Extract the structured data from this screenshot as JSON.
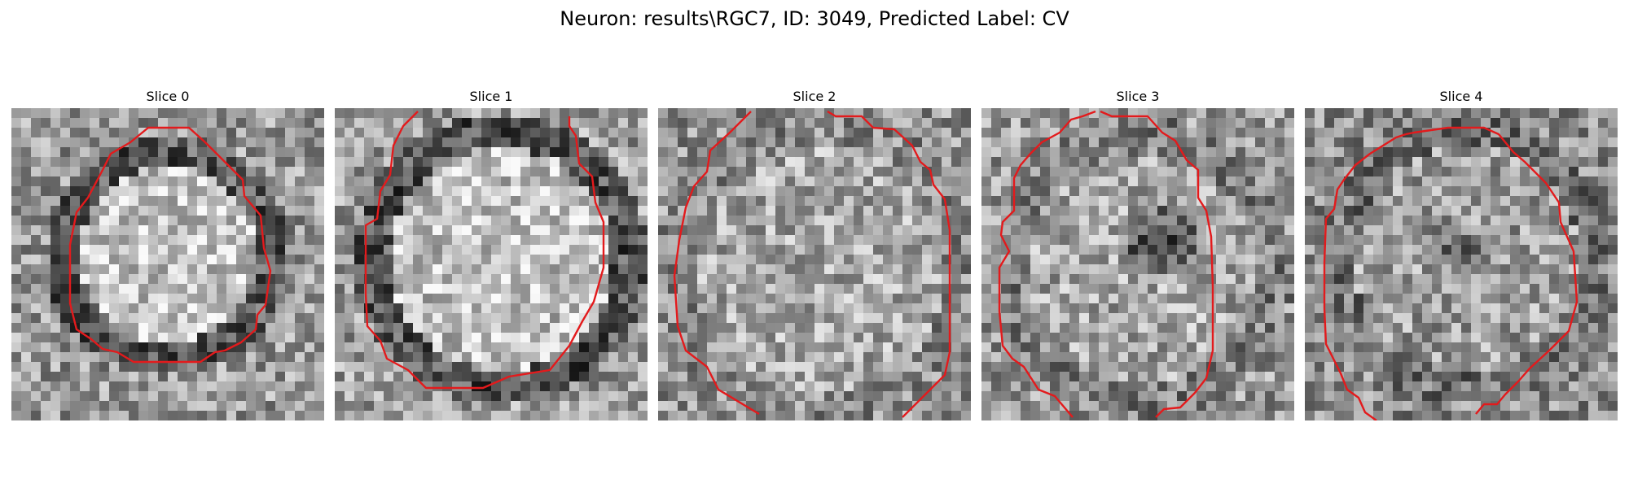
{
  "figure": {
    "title": "Neuron: results\\RGC7, ID: 3049, Predicted Label: CV"
  },
  "colors": {
    "contour": "#e31a1c",
    "background": "#ffffff"
  },
  "panels": [
    {
      "title": "Slice 0",
      "seed": 11
    },
    {
      "title": "Slice 1",
      "seed": 29
    },
    {
      "title": "Slice 2",
      "seed": 47
    },
    {
      "title": "Slice 3",
      "seed": 83
    },
    {
      "title": "Slice 4",
      "seed": 131
    }
  ]
}
